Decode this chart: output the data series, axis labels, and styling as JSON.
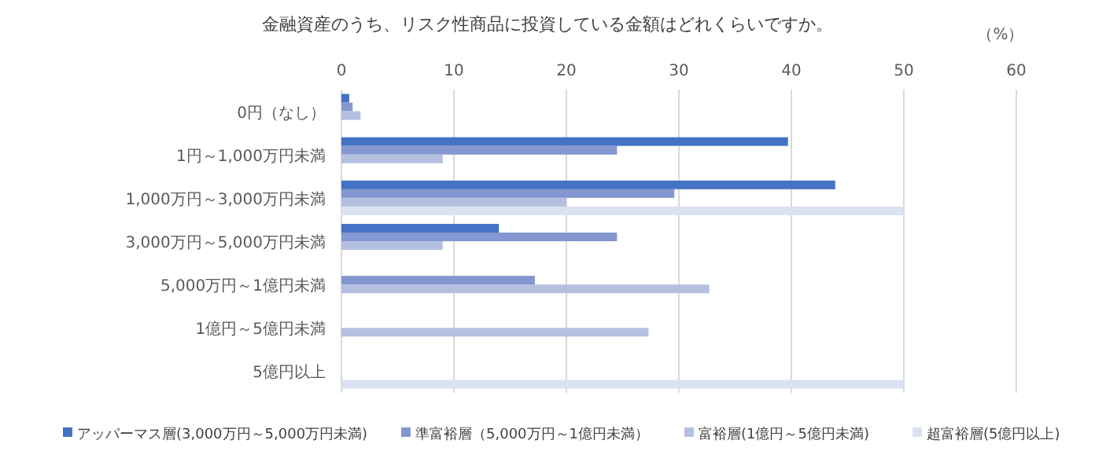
{
  "chart_data": {
    "type": "bar",
    "orientation": "horizontal",
    "title": "金融資産のうち、リスク性商品に投資している金額はどれくらいですか。",
    "xlabel": "（%）",
    "categories": [
      "0円（なし）",
      "1円～1,000万円未満",
      "1,000万円～3,000万円未満",
      "3,000万円～5,000万円未満",
      "5,000万円～1億円未満",
      "1億円～5億円未満",
      "5億円以上"
    ],
    "series": [
      {
        "name": "アッパーマス層(3,000万円～5,000万円未満)",
        "color": "#4472c4",
        "values": [
          0.7,
          39.7,
          43.9,
          14.0,
          null,
          null,
          null
        ]
      },
      {
        "name": "準富裕層（5,000万円～1億円未満）",
        "color": "#8497d0",
        "values": [
          1.0,
          24.5,
          29.6,
          24.5,
          17.2,
          null,
          null
        ]
      },
      {
        "name": "富裕層(1億円～5億円未満)",
        "color": "#b4c0e0",
        "values": [
          1.7,
          9.0,
          20.0,
          9.0,
          32.7,
          27.3,
          null
        ]
      },
      {
        "name": "超富裕層(5億円以上)",
        "color": "#dae1f0",
        "values": [
          null,
          null,
          50,
          null,
          null,
          null,
          50
        ]
      }
    ],
    "xlim": [
      0,
      60
    ],
    "xticks": [
      0,
      10,
      20,
      30,
      40,
      50,
      60
    ],
    "grid": "x",
    "legend": "bottom"
  }
}
